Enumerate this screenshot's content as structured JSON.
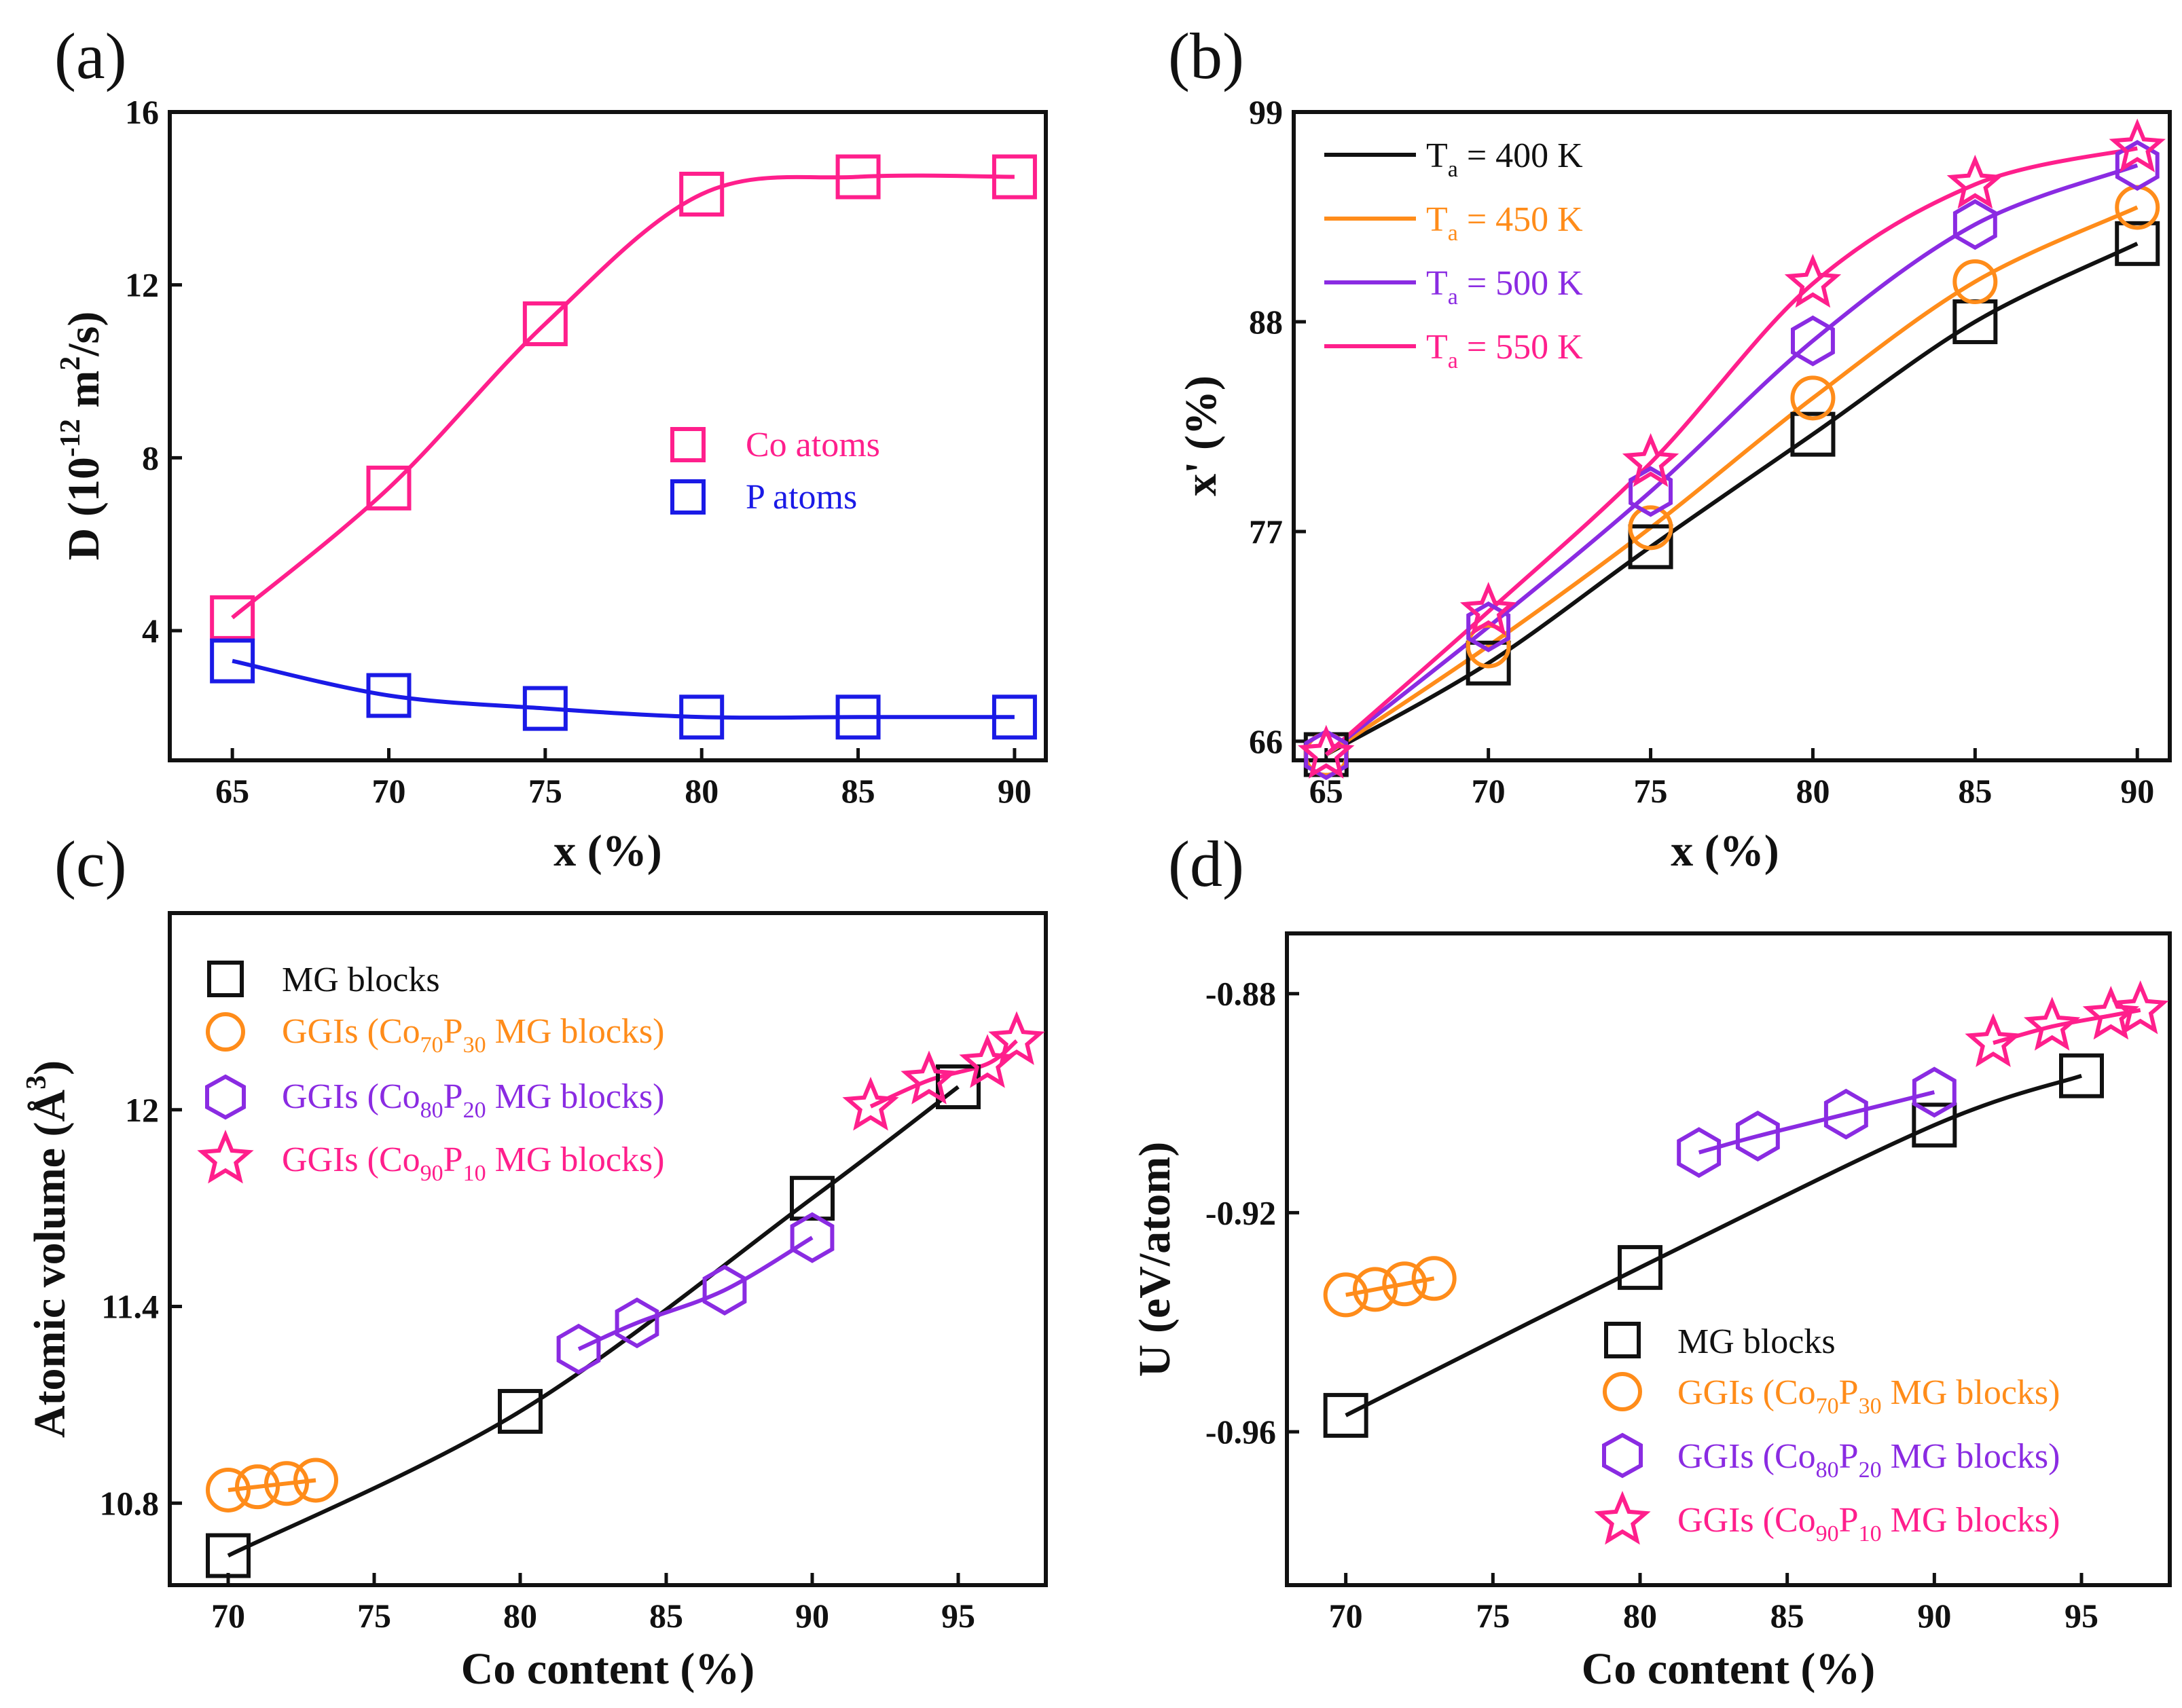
{
  "colors": {
    "black": "#111111",
    "pink": "#ff1f8c",
    "blue": "#1a1ae6",
    "orange": "#ff8c1a",
    "purple": "#8a2be2",
    "magenta": "#ff1f8c"
  },
  "chart_data": [
    {
      "id": "a",
      "panel_label": "(a)",
      "type": "line",
      "xlabel": "x (%)",
      "ylabel_main": "D (10",
      "ylabel_exp": "-12",
      "ylabel_mid": " m",
      "ylabel_sq": "2",
      "ylabel_end": "/s)",
      "xlim": [
        63,
        91
      ],
      "ylim": [
        1,
        16
      ],
      "xticks": [
        65,
        70,
        75,
        80,
        85,
        90
      ],
      "yticks": [
        4,
        8,
        12,
        16
      ],
      "legend_position": "center-right",
      "series": [
        {
          "name": "Co atoms",
          "color": "pink",
          "marker": "square",
          "x": [
            65,
            70,
            75,
            80,
            85,
            90
          ],
          "y": [
            4.3,
            7.3,
            11.1,
            14.1,
            14.5,
            14.5
          ]
        },
        {
          "name": "P atoms",
          "color": "blue",
          "marker": "square",
          "x": [
            65,
            70,
            75,
            80,
            85,
            90
          ],
          "y": [
            3.3,
            2.5,
            2.2,
            2.0,
            2.0,
            2.0
          ]
        }
      ]
    },
    {
      "id": "b",
      "panel_label": "(b)",
      "type": "line",
      "xlabel": "x (%)",
      "ylabel": "x' (%)",
      "xlim": [
        64,
        91
      ],
      "ylim": [
        65,
        99
      ],
      "xticks": [
        65,
        70,
        75,
        80,
        85,
        90
      ],
      "yticks": [
        66,
        77,
        88,
        99
      ],
      "legend_position": "top-left",
      "series": [
        {
          "name_main": "T",
          "name_sub": "a",
          "name_end": " = 400 K",
          "color": "black",
          "marker": "square",
          "x": [
            65,
            70,
            75,
            80,
            85,
            90
          ],
          "y": [
            65.3,
            70.1,
            76.2,
            82.1,
            88.0,
            92.1
          ]
        },
        {
          "name_main": "T",
          "name_sub": "a",
          "name_end": " = 450 K",
          "color": "orange",
          "marker": "circle",
          "x": [
            65,
            70,
            75,
            80,
            85,
            90
          ],
          "y": [
            65.3,
            71.0,
            77.2,
            84.0,
            90.1,
            94.0
          ]
        },
        {
          "name_main": "T",
          "name_sub": "a",
          "name_end": " = 500 K",
          "color": "purple",
          "marker": "hexagon",
          "x": [
            65,
            70,
            75,
            80,
            85,
            90
          ],
          "y": [
            65.3,
            72.0,
            79.1,
            87.0,
            93.1,
            96.2
          ]
        },
        {
          "name_main": "T",
          "name_sub": "a",
          "name_end": " = 550 K",
          "color": "magenta",
          "marker": "star",
          "x": [
            65,
            70,
            75,
            80,
            85,
            90
          ],
          "y": [
            65.3,
            72.8,
            80.6,
            90.0,
            95.2,
            97.1
          ]
        }
      ]
    },
    {
      "id": "c",
      "panel_label": "(c)",
      "type": "line",
      "xlabel": "Co content (%)",
      "ylabel_main": "Atomic volume (",
      "ylabel_unit": "Å",
      "ylabel_sup": "3",
      "ylabel_end": ")",
      "xlim": [
        68,
        98
      ],
      "ylim": [
        10.55,
        12.6
      ],
      "xticks": [
        70,
        75,
        80,
        85,
        90,
        95
      ],
      "yticks": [
        10.8,
        11.4,
        12.0
      ],
      "legend_position": "top-left",
      "series": [
        {
          "name": "MG blocks",
          "color": "black",
          "marker": "square",
          "x": [
            70,
            80,
            90,
            95
          ],
          "y": [
            10.64,
            11.08,
            11.73,
            12.07
          ]
        },
        {
          "name_pre": "GGIs (Co",
          "sub1": "70",
          "name_mid": "P",
          "sub2": "30",
          "name_end": " MG blocks)",
          "color": "orange",
          "marker": "circle",
          "x": [
            70,
            71,
            72,
            73
          ],
          "y": [
            10.84,
            10.85,
            10.86,
            10.87
          ]
        },
        {
          "name_pre": "GGIs (Co",
          "sub1": "80",
          "name_mid": "P",
          "sub2": "20",
          "name_end": " MG blocks)",
          "color": "purple",
          "marker": "hexagon",
          "x": [
            82,
            84,
            87,
            90
          ],
          "y": [
            11.27,
            11.35,
            11.45,
            11.61
          ]
        },
        {
          "name_pre": "GGIs (Co",
          "sub1": "90",
          "name_mid": "P",
          "sub2": "10",
          "name_end": " MG blocks)",
          "color": "magenta",
          "marker": "star",
          "x": [
            92,
            94,
            96,
            97
          ],
          "y": [
            12.01,
            12.09,
            12.14,
            12.21
          ]
        }
      ]
    },
    {
      "id": "d",
      "panel_label": "(d)",
      "type": "line",
      "xlabel": "Co content (%)",
      "ylabel": "U (eV/atom)",
      "xlim": [
        68,
        98
      ],
      "ylim": [
        -0.988,
        -0.869
      ],
      "xticks": [
        70,
        75,
        80,
        85,
        90,
        95
      ],
      "yticks": [
        -0.88,
        -0.92,
        -0.96
      ],
      "ytick_labels": [
        "-0.88",
        "-0.92",
        "-0.96"
      ],
      "legend_position": "bottom-right",
      "series": [
        {
          "name": "MG blocks",
          "color": "black",
          "marker": "square",
          "x": [
            70,
            80,
            90,
            95
          ],
          "y": [
            -0.957,
            -0.93,
            -0.904,
            -0.895
          ]
        },
        {
          "name_pre": "GGIs (Co",
          "sub1": "70",
          "name_mid": "P",
          "sub2": "30",
          "name_end": " MG blocks)",
          "color": "orange",
          "marker": "circle",
          "x": [
            70,
            71,
            72,
            73
          ],
          "y": [
            -0.935,
            -0.934,
            -0.933,
            -0.932
          ]
        },
        {
          "name_pre": "GGIs (Co",
          "sub1": "80",
          "name_mid": "P",
          "sub2": "20",
          "name_end": " MG blocks)",
          "color": "purple",
          "marker": "hexagon",
          "x": [
            82,
            84,
            87,
            90
          ],
          "y": [
            -0.909,
            -0.906,
            -0.902,
            -0.898
          ]
        },
        {
          "name_pre": "GGIs (Co",
          "sub1": "90",
          "name_mid": "P",
          "sub2": "10",
          "name_end": " MG blocks)",
          "color": "magenta",
          "marker": "star",
          "x": [
            92,
            94,
            96,
            97
          ],
          "y": [
            -0.889,
            -0.886,
            -0.884,
            -0.883
          ]
        }
      ]
    }
  ]
}
